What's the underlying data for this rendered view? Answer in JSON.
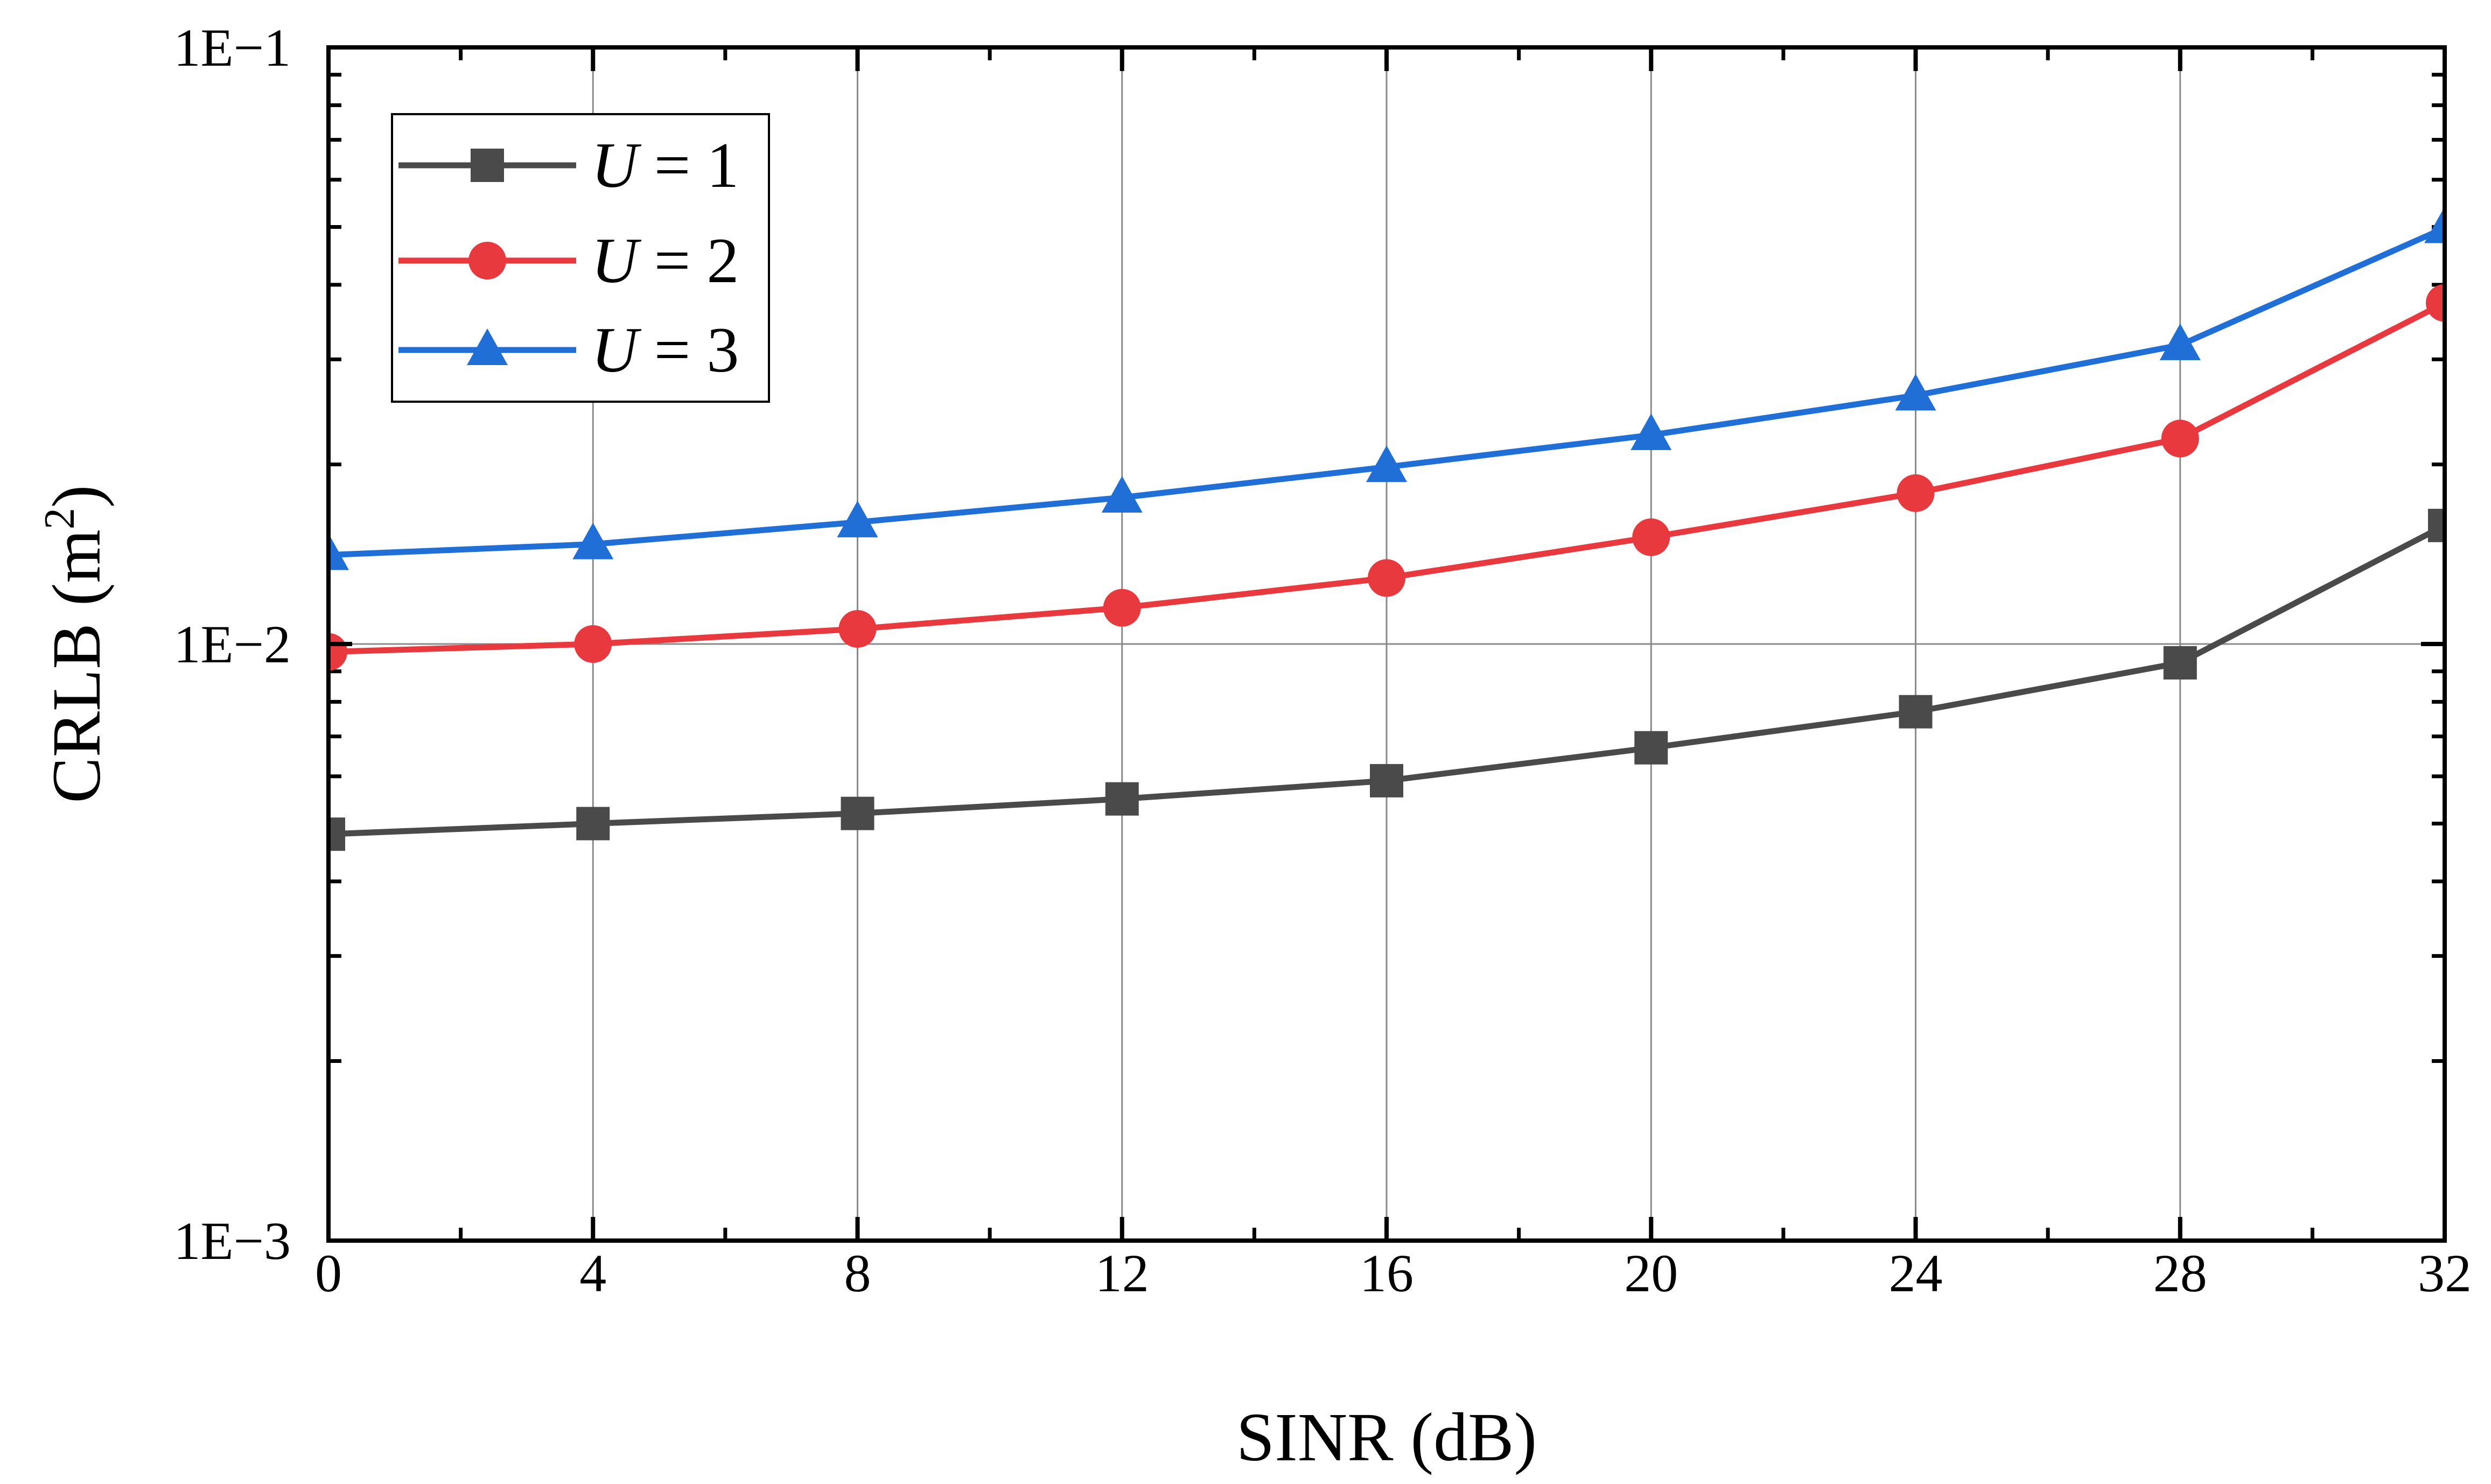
{
  "chart_data": {
    "type": "line",
    "title": "",
    "xlabel": "SINR (dB)",
    "ylabel_main": "CRLB (m",
    "ylabel_sup": "2",
    "ylabel_close": ")",
    "x": [
      0,
      4,
      8,
      12,
      16,
      20,
      24,
      28,
      32
    ],
    "xlim": [
      0,
      32
    ],
    "xticks": [
      0,
      4,
      8,
      12,
      16,
      20,
      24,
      28,
      32
    ],
    "xtick_labels": [
      "0",
      "4",
      "8",
      "12",
      "16",
      "20",
      "24",
      "28",
      "32"
    ],
    "yscale": "log",
    "ylim": [
      0.001,
      0.1
    ],
    "yticks": [
      0.001,
      0.01,
      0.1
    ],
    "ytick_labels": [
      "1E−3",
      "1E−2",
      "1E−1"
    ],
    "grid": true,
    "legend_position": "top-left",
    "series": [
      {
        "name": "U = 1",
        "label_var": "U",
        "label_rest": " = 1",
        "color": "#4a4a4a",
        "marker": "square",
        "values": [
          0.0048,
          0.005,
          0.0052,
          0.0055,
          0.0059,
          0.0067,
          0.0077,
          0.0093,
          0.0158
        ]
      },
      {
        "name": "U = 2",
        "label_var": "U",
        "label_rest": " = 2",
        "color": "#e8393f",
        "marker": "circle",
        "values": [
          0.0097,
          0.01,
          0.0106,
          0.0115,
          0.0129,
          0.0151,
          0.0179,
          0.0221,
          0.0373
        ]
      },
      {
        "name": "U = 3",
        "label_var": "U",
        "label_rest": " = 3",
        "color": "#1f6fd6",
        "marker": "triangle",
        "values": [
          0.0141,
          0.0147,
          0.016,
          0.0176,
          0.0198,
          0.0224,
          0.0261,
          0.0317,
          0.0498
        ]
      }
    ]
  }
}
